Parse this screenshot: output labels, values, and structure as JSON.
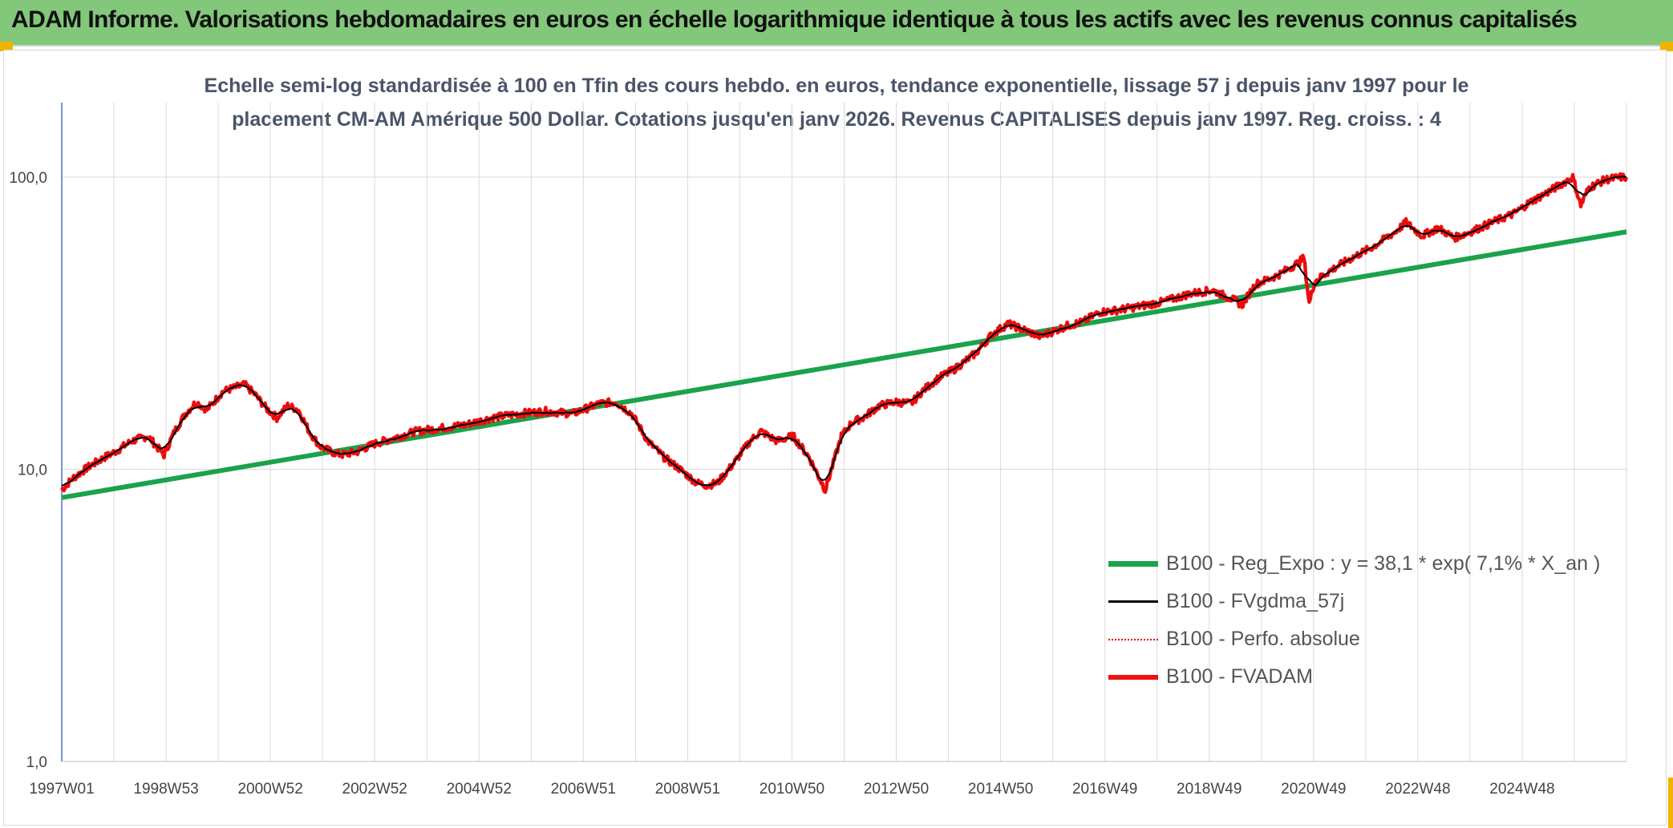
{
  "banner": {
    "title": "ADAM Informe. Valorisations hebdomadaires en euros en échelle logarithmique identique à tous les actifs avec les revenus connus capitalisés"
  },
  "colors": {
    "banner_bg": "#82c77a",
    "regression": "#1aa34a",
    "moving_average": "#000000",
    "perf_absolue": "#e00000",
    "fvadam": "#ee1111",
    "grid": "#d9d9d9",
    "accent": "#f0b400"
  },
  "chart_data": {
    "type": "line",
    "title_lines": [
      "Echelle semi-log standardisée à 100 en Tfin des cours hebdo. en euros, tendance exponentielle, lissage 57 j depuis janv 1997 pour le",
      "placement CM-AM Amérique 500 Dollar. Cotations jusqu'en janv 2026. Revenus CAPITALISES depuis janv 1997. Reg. croiss. : 4"
    ],
    "y_scale": "log",
    "ylim": [
      1,
      180
    ],
    "y_ticks": [
      1,
      10,
      100
    ],
    "y_tick_labels": [
      "1,0",
      "10,0",
      "100,0"
    ],
    "x_range_years": [
      1997.0,
      2026.1
    ],
    "x_tick_labels": [
      "1997W01",
      "1998W53",
      "2000W52",
      "2002W52",
      "2004W52",
      "2006W51",
      "2008W51",
      "2010W50",
      "2012W50",
      "2014W50",
      "2016W49",
      "2018W49",
      "2020W49",
      "2022W48",
      "2024W48"
    ],
    "grid": "vertical-and-horizontal",
    "legend_position": "bottom-right",
    "legend": [
      {
        "label": "B100 - Reg_Expo : y = 38,1 * exp( 7,1% *  X_an )",
        "style": "solid-thick",
        "color_key": "regression"
      },
      {
        "label": "B100 - FVgdma_57j",
        "style": "solid",
        "color_key": "moving_average"
      },
      {
        "label": "B100 - Perfo. absolue",
        "style": "dotted",
        "color_key": "perf_absolue"
      },
      {
        "label": "B100 - FVADAM",
        "style": "solid-thick",
        "color_key": "fvadam"
      }
    ],
    "series": [
      {
        "name": "B100 - Reg_Expo : y = 38,1 * exp( 7,1% *  X_an )",
        "x": [
          1997.0,
          2026.1
        ],
        "values": [
          8.0,
          65.0
        ]
      },
      {
        "name": "B100 - FVADAM",
        "x": [
          1997.0,
          1997.2,
          1997.5,
          1997.8,
          1998.0,
          1998.3,
          1998.6,
          1998.9,
          1999.1,
          1999.3,
          1999.5,
          1999.7,
          2000.0,
          2000.2,
          2000.4,
          2000.6,
          2000.8,
          2001.0,
          2001.2,
          2001.4,
          2001.6,
          2001.8,
          2002.0,
          2002.2,
          2002.5,
          2002.8,
          2003.0,
          2003.3,
          2003.6,
          2004.0,
          2004.5,
          2005.0,
          2005.5,
          2006.0,
          2006.5,
          2007.0,
          2007.3,
          2007.6,
          2007.9,
          2008.2,
          2008.5,
          2008.8,
          2009.0,
          2009.2,
          2009.5,
          2009.8,
          2010.0,
          2010.3,
          2010.6,
          2010.9,
          2011.2,
          2011.5,
          2011.7,
          2011.9,
          2012.2,
          2012.5,
          2012.8,
          2013.0,
          2013.3,
          2013.6,
          2014.0,
          2014.3,
          2014.6,
          2014.9,
          2015.2,
          2015.5,
          2015.7,
          2016.0,
          2016.3,
          2016.6,
          2017.0,
          2017.5,
          2018.0,
          2018.4,
          2018.8,
          2018.95,
          2019.2,
          2019.6,
          2020.0,
          2020.1,
          2020.2,
          2020.3,
          2020.6,
          2021.0,
          2021.4,
          2021.8,
          2022.0,
          2022.3,
          2022.6,
          2022.9,
          2023.2,
          2023.6,
          2024.0,
          2024.3,
          2024.6,
          2024.9,
          2025.1,
          2025.25,
          2025.4,
          2025.7,
          2026.0,
          2026.1
        ],
        "values": [
          8.5,
          9.3,
          10.2,
          11.0,
          11.5,
          12.5,
          13.0,
          11.2,
          13.5,
          15.5,
          17.0,
          16.0,
          18.5,
          19.0,
          19.5,
          18.0,
          16.2,
          15.0,
          16.5,
          16.0,
          13.5,
          12.0,
          11.5,
          11.2,
          11.5,
          12.2,
          12.5,
          13.0,
          13.5,
          13.8,
          14.2,
          15.0,
          15.5,
          15.8,
          15.5,
          16.8,
          17.0,
          15.5,
          12.5,
          11.0,
          10.0,
          9.0,
          8.8,
          9.0,
          10.5,
          12.5,
          13.5,
          12.5,
          13.0,
          11.0,
          8.5,
          13.0,
          14.5,
          15.0,
          16.5,
          17.0,
          16.8,
          18.5,
          20.5,
          22.0,
          25.0,
          29.0,
          31.5,
          30.0,
          28.5,
          30.0,
          31.0,
          32.0,
          34.5,
          35.0,
          36.0,
          37.5,
          40.0,
          41.0,
          38.0,
          36.5,
          43.0,
          46.0,
          51.0,
          53.0,
          37.0,
          44.0,
          48.0,
          53.0,
          58.0,
          65.0,
          70.0,
          63.0,
          67.0,
          62.0,
          65.0,
          70.0,
          75.0,
          82.0,
          88.0,
          95.0,
          100.0,
          80.0,
          92.0,
          98.0,
          100.0,
          100.0
        ]
      },
      {
        "name": "B100 - FVgdma_57j",
        "derived_from": "B100 - FVADAM",
        "smoothing_window_weeks": 8
      },
      {
        "name": "B100 - Perfo. absolue",
        "derived_from": "B100 - FVADAM"
      }
    ]
  }
}
